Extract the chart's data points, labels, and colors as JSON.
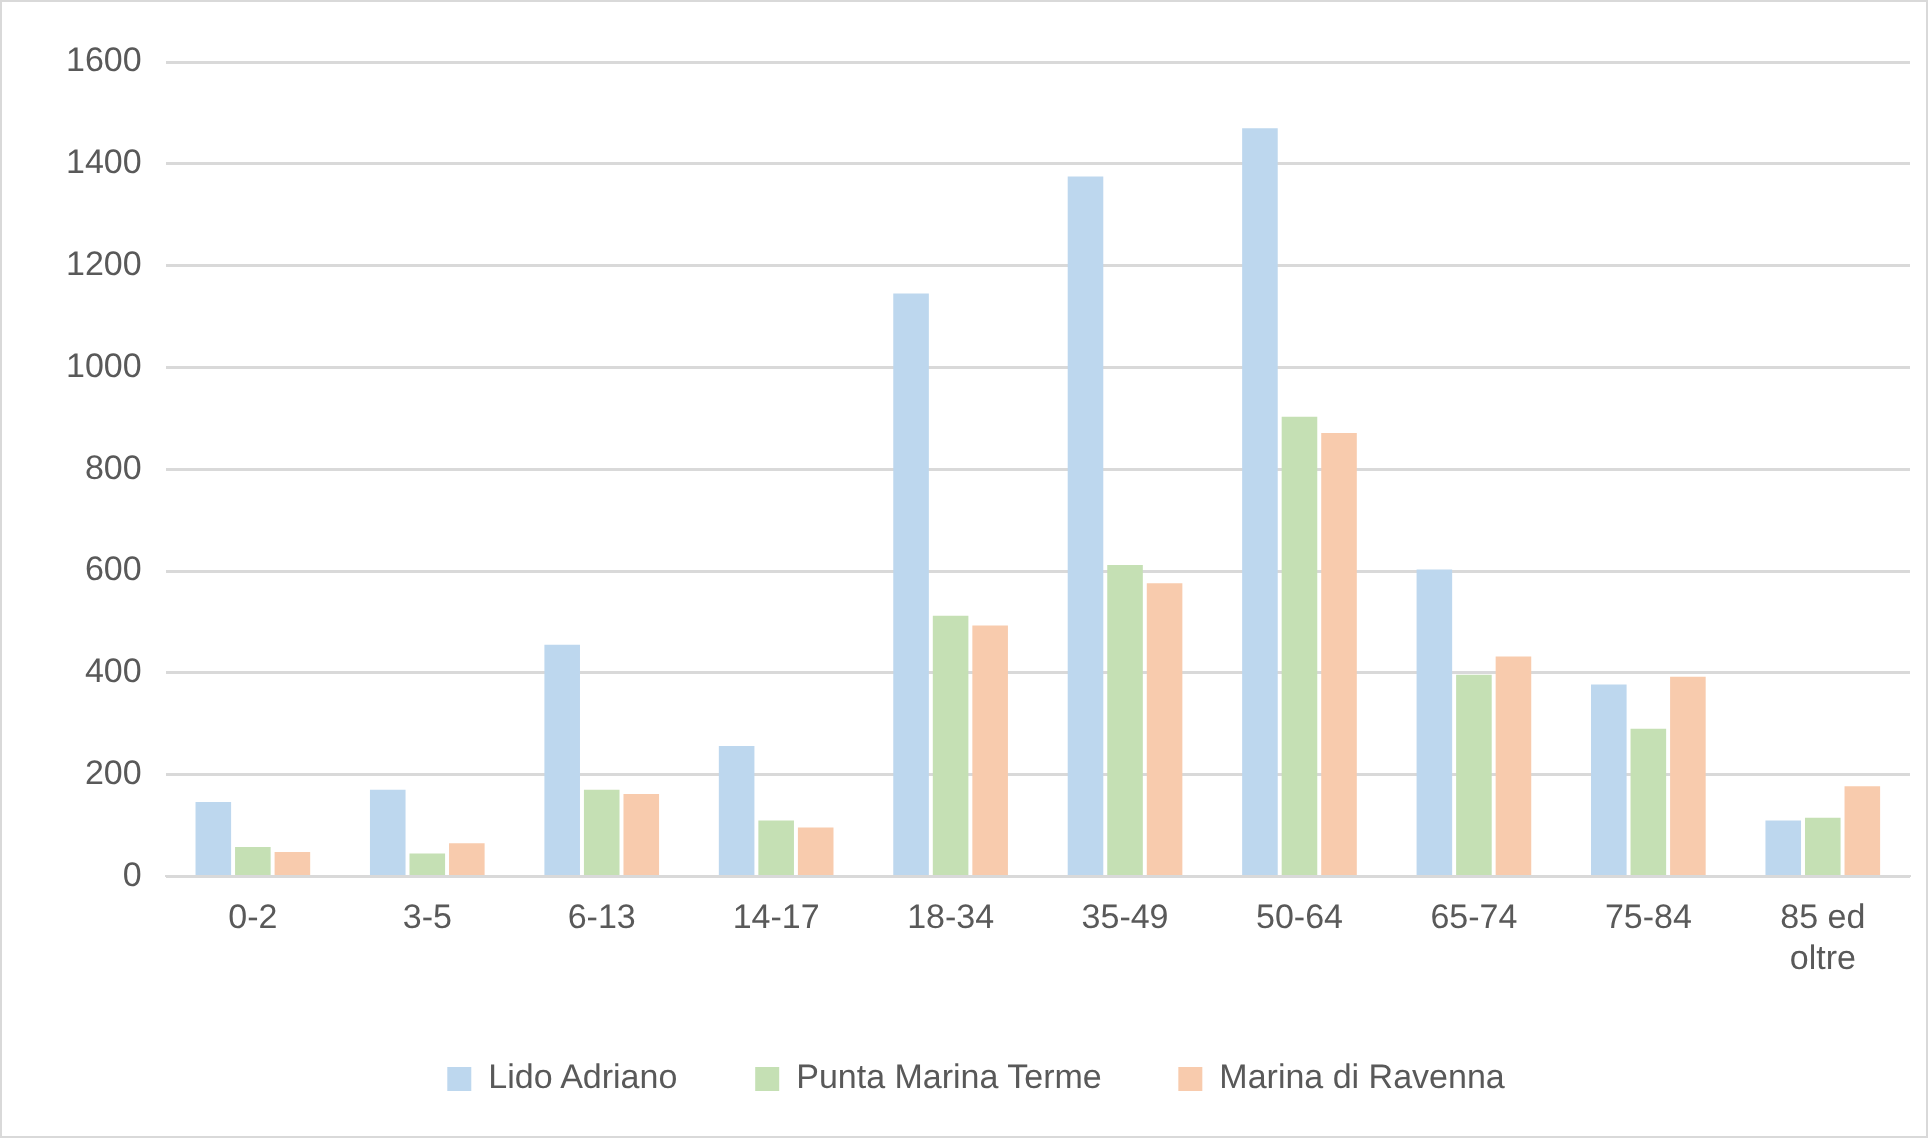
{
  "chart_data": {
    "type": "bar",
    "categories": [
      "0-2",
      "3-5",
      "6-13",
      "14-17",
      "18-34",
      "35-49",
      "50-64",
      "65-74",
      "75-84",
      "85 ed oltre"
    ],
    "series": [
      {
        "name": "Lido Adriano",
        "color": "#bdd7ee",
        "values": [
          146,
          170,
          455,
          256,
          1145,
          1375,
          1470,
          603,
          377,
          110
        ]
      },
      {
        "name": "Punta Marina Terme",
        "color": "#c5e0b4",
        "values": [
          58,
          45,
          170,
          110,
          512,
          612,
          903,
          396,
          290,
          115
        ]
      },
      {
        "name": "Marina di Ravenna",
        "color": "#f8cbad",
        "values": [
          48,
          65,
          162,
          96,
          493,
          576,
          871,
          432,
          392,
          177
        ]
      }
    ],
    "ylim": [
      0,
      1600
    ],
    "yticks": [
      0,
      200,
      400,
      600,
      800,
      1000,
      1200,
      1400,
      1600
    ],
    "grid": "y",
    "legend": "bottom"
  }
}
